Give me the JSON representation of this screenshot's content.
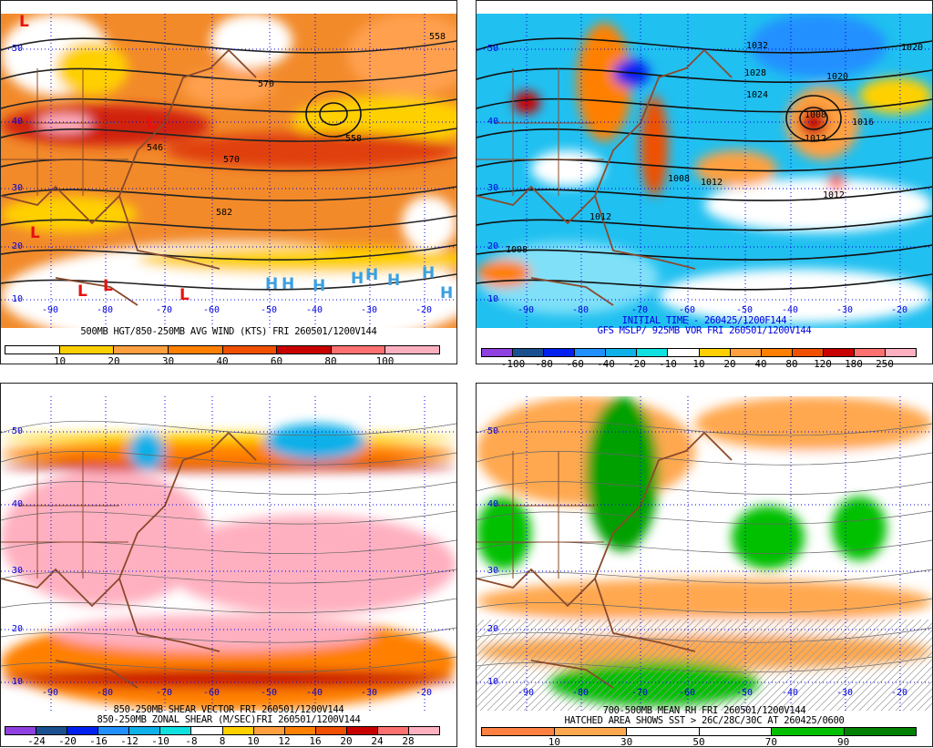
{
  "panels": [
    {
      "id": "wind",
      "caption": [
        "500MB HGT/850-250MB AVG WIND (KTS) FRI 260501/1200V144"
      ],
      "caption_color": "#000000",
      "colorbar": {
        "colors": [
          "#ffffff",
          "#ffd000",
          "#ffa040",
          "#ff8000",
          "#f05000",
          "#c80000",
          "#ff7070",
          "#ffb0c0"
        ],
        "labels": [
          "10",
          "20",
          "30",
          "40",
          "60",
          "80",
          "100"
        ]
      },
      "lat_labels": [
        "50",
        "40",
        "30",
        "20",
        "10"
      ],
      "lon_labels": [
        "-90",
        "-80",
        "-70",
        "-60",
        "-50",
        "-40",
        "-30",
        "-20"
      ],
      "contour_labels": [
        "558",
        "570",
        "546",
        "558",
        "570",
        "582"
      ],
      "lows": [
        "L",
        "L",
        "L",
        "L",
        "L",
        "L"
      ],
      "highs": [
        "H",
        "H",
        "H",
        "H",
        "H",
        "H",
        "H",
        "H"
      ],
      "low_color": "#e81010",
      "high_color": "#3aa0e0"
    },
    {
      "id": "mslp",
      "caption": [
        "INITIAL TIME - 260425/1200F144",
        "GFS MSLP/ 925MB VOR FRI 260501/1200V144"
      ],
      "caption_color": "#0000e0",
      "colorbar": {
        "colors": [
          "#9040e0",
          "#1a5090",
          "#0020f0",
          "#2090ff",
          "#10b0e8",
          "#10e0e0",
          "#ffffff",
          "#ffd000",
          "#ffa040",
          "#ff8000",
          "#f05000",
          "#c80000",
          "#ff7070",
          "#ffb0c0"
        ],
        "labels": [
          "-100",
          "-80",
          "-60",
          "-40",
          "-20",
          "-10",
          "10",
          "20",
          "40",
          "80",
          "120",
          "180",
          "250"
        ]
      },
      "lat_labels": [
        "50",
        "40",
        "30",
        "20",
        "10"
      ],
      "lon_labels": [
        "-90",
        "-80",
        "-70",
        "-60",
        "-50",
        "-40",
        "-30",
        "-20"
      ],
      "contour_labels": [
        "1032",
        "1028",
        "1024",
        "1020",
        "1020",
        "1008",
        "1012",
        "1016",
        "1012",
        "1008",
        "1012",
        "1008",
        "1012"
      ]
    },
    {
      "id": "shear",
      "caption": [
        "850-250MB SHEAR VECTOR FRI 260501/1200V144",
        "850-250MB ZONAL SHEAR (M/SEC)FRI 260501/1200V144"
      ],
      "caption_color": "#000000",
      "colorbar": {
        "colors": [
          "#9040e0",
          "#1a5090",
          "#0020f0",
          "#2090ff",
          "#10b0e8",
          "#10e0e0",
          "#ffffff",
          "#ffd000",
          "#ffa040",
          "#ff8000",
          "#f05000",
          "#c80000",
          "#ff7070",
          "#ffb0c0"
        ],
        "labels": [
          "-24",
          "-20",
          "-16",
          "-12",
          "-10",
          "-8",
          "8",
          "10",
          "12",
          "16",
          "20",
          "24",
          "28"
        ]
      },
      "lat_labels": [
        "50",
        "40",
        "30",
        "20",
        "10"
      ],
      "lon_labels": [
        "-90",
        "-80",
        "-70",
        "-60",
        "-50",
        "-40",
        "-30",
        "-20"
      ]
    },
    {
      "id": "rh",
      "caption": [
        "700-500MB MEAN RH FRI 260501/1200V144",
        "HATCHED AREA SHOWS SST > 26C/28C/30C AT 260425/0600"
      ],
      "caption_color": "#000000",
      "colorbar": {
        "colors": [
          "#ff8040",
          "#ffa850",
          "#ffffff",
          "#ffffff",
          "#00c000",
          "#008000"
        ],
        "labels": [
          "10",
          "30",
          "50",
          "70",
          "90"
        ]
      },
      "lat_labels": [
        "50",
        "40",
        "30",
        "20",
        "10"
      ],
      "lon_labels": [
        "-90",
        "-80",
        "-70",
        "-60",
        "-50",
        "-40",
        "-30",
        "-20"
      ]
    }
  ]
}
